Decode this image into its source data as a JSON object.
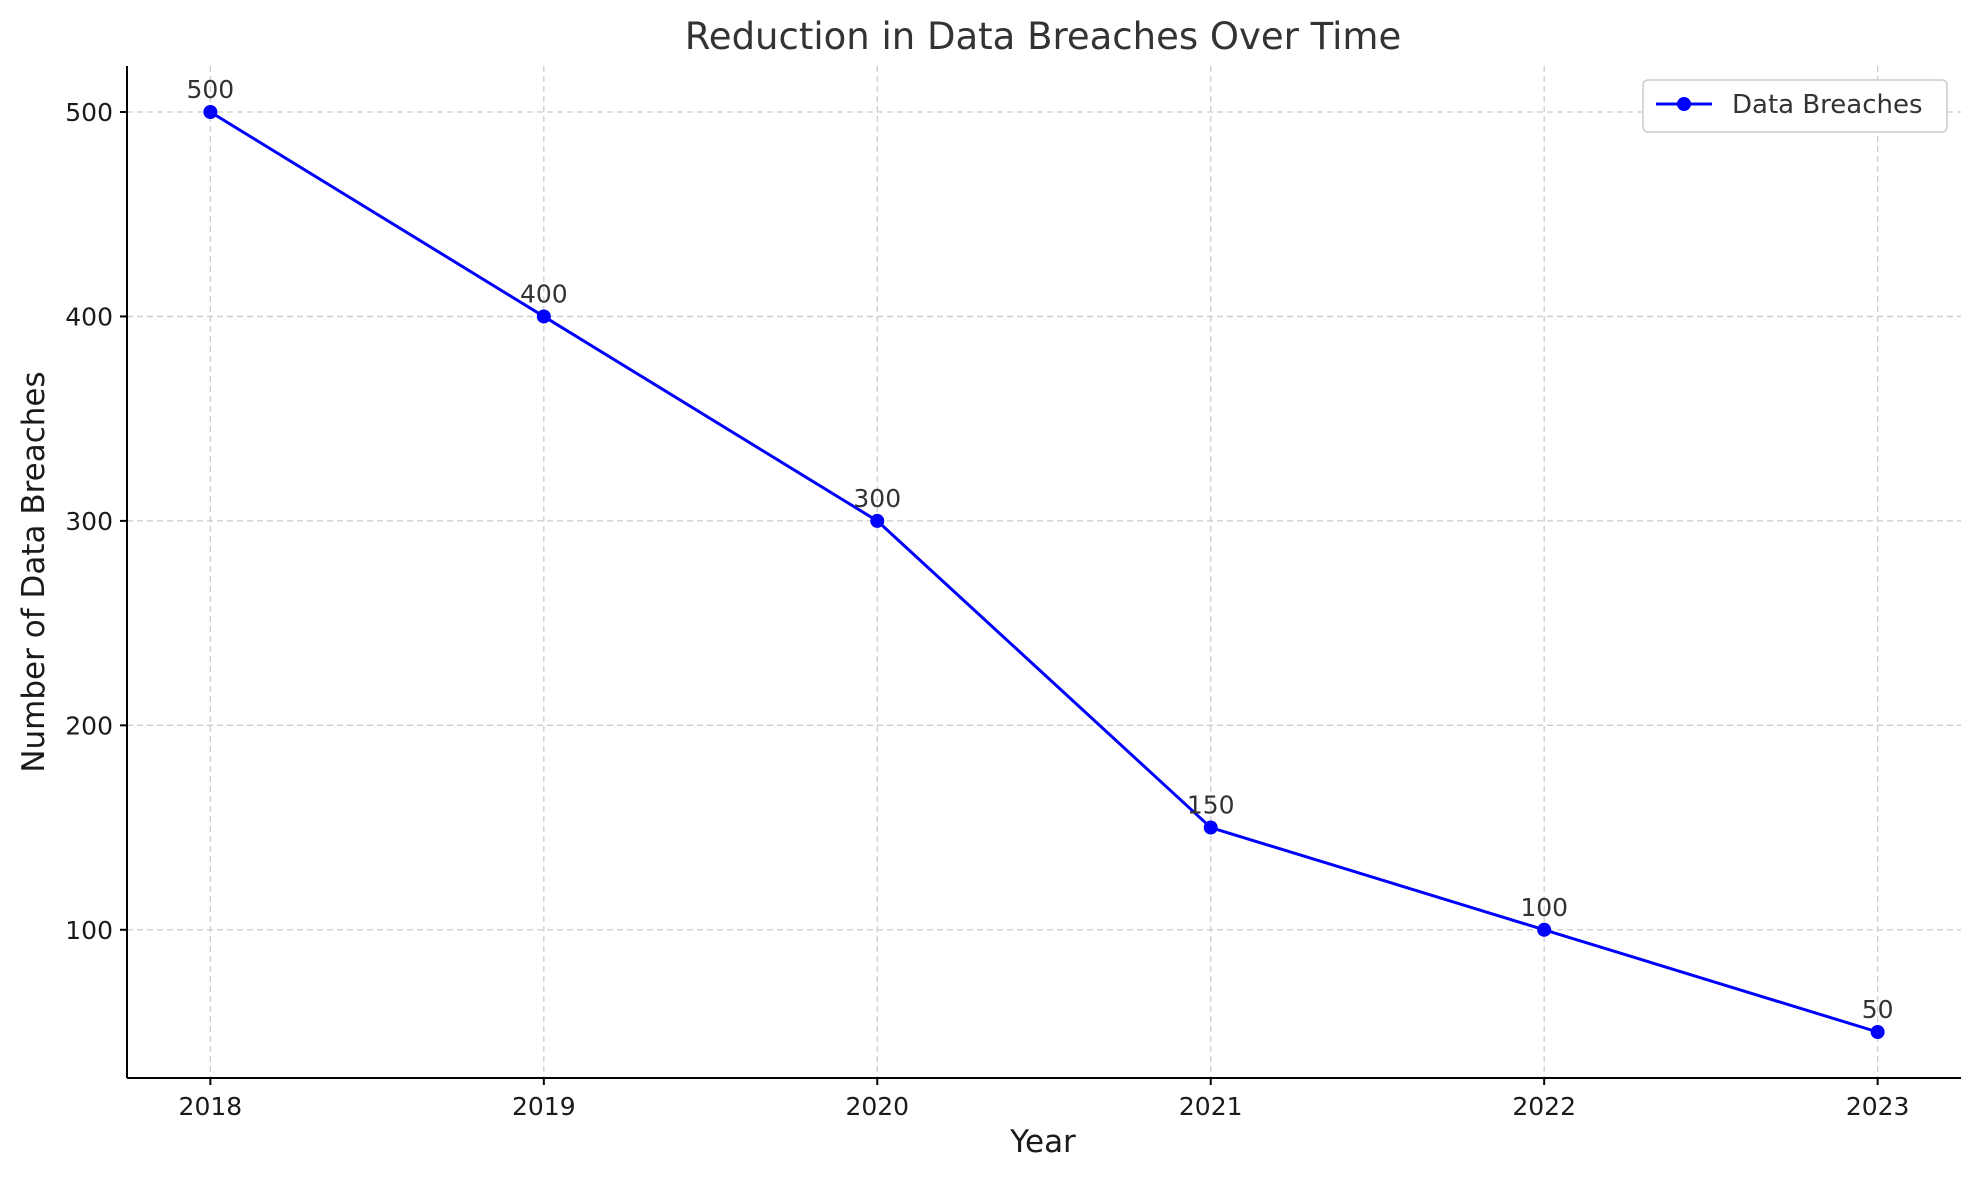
{
  "chart_data": {
    "type": "line",
    "title": "Reduction in Data Breaches Over Time",
    "xlabel": "Year",
    "ylabel": "Number of Data Breaches",
    "x": [
      2018,
      2019,
      2020,
      2021,
      2022,
      2023
    ],
    "series": [
      {
        "name": "Data Breaches",
        "values": [
          500,
          400,
          300,
          150,
          100,
          50
        ],
        "color": "#0000ff",
        "marker": "circle"
      }
    ],
    "data_labels": [
      "500",
      "400",
      "300",
      "150",
      "100",
      "50"
    ],
    "xticks": [
      "2018",
      "2019",
      "2020",
      "2021",
      "2022",
      "2023"
    ],
    "yticks": [
      100,
      200,
      300,
      400,
      500
    ],
    "ytick_labels": [
      "100",
      "200",
      "300",
      "400",
      "500"
    ],
    "xlim": [
      2017.75,
      2023.25
    ],
    "ylim": [
      27.5,
      522.5
    ],
    "grid": true,
    "legend_position": "top-right"
  }
}
